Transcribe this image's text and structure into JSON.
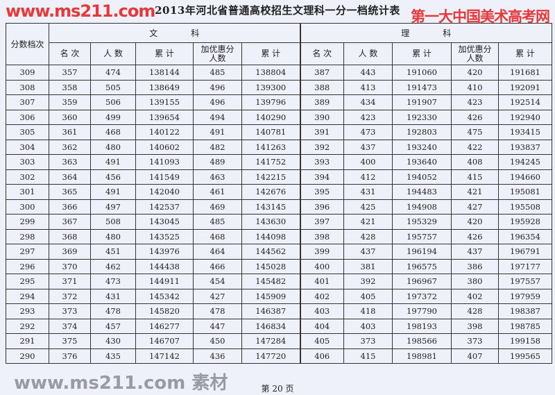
{
  "title": "2013年河北省普通高校招生文理科一分一档统计表",
  "watermarks": {
    "red_line1": "第一大中国美术高考网",
    "red_line2": "www.ms211.com",
    "gray": "www.ms211.com 素材"
  },
  "header": {
    "score_col": "分数档次",
    "wenke": "文　　　　科",
    "like": "理　　　　科",
    "subcols": [
      "名 次",
      "人 数",
      "累 计",
      "加优惠分人数",
      "累 计"
    ]
  },
  "rows": [
    [
      "309",
      "357",
      "474",
      "138144",
      "485",
      "138804",
      "387",
      "443",
      "191060",
      "420",
      "191681"
    ],
    [
      "308",
      "358",
      "505",
      "138649",
      "496",
      "139300",
      "388",
      "413",
      "191473",
      "410",
      "192091"
    ],
    [
      "307",
      "359",
      "506",
      "139155",
      "496",
      "139796",
      "389",
      "434",
      "191907",
      "423",
      "192514"
    ],
    [
      "306",
      "360",
      "499",
      "139654",
      "494",
      "140290",
      "390",
      "423",
      "192330",
      "426",
      "192940"
    ],
    [
      "305",
      "361",
      "468",
      "140122",
      "491",
      "140781",
      "391",
      "473",
      "192803",
      "475",
      "193415"
    ],
    [
      "304",
      "362",
      "480",
      "140602",
      "482",
      "141263",
      "392",
      "437",
      "193240",
      "422",
      "193837"
    ],
    [
      "303",
      "363",
      "491",
      "141093",
      "489",
      "141752",
      "393",
      "400",
      "193640",
      "408",
      "194245"
    ],
    [
      "302",
      "364",
      "456",
      "141549",
      "463",
      "142215",
      "394",
      "412",
      "194052",
      "415",
      "194660"
    ],
    [
      "301",
      "365",
      "491",
      "142040",
      "461",
      "142676",
      "395",
      "431",
      "194483",
      "421",
      "195081"
    ],
    [
      "300",
      "366",
      "497",
      "142537",
      "469",
      "143145",
      "396",
      "425",
      "194908",
      "427",
      "195508"
    ],
    [
      "299",
      "367",
      "508",
      "143045",
      "485",
      "143630",
      "397",
      "421",
      "195329",
      "420",
      "195928"
    ],
    [
      "298",
      "368",
      "480",
      "143525",
      "468",
      "144098",
      "398",
      "428",
      "195757",
      "426",
      "196354"
    ],
    [
      "297",
      "369",
      "451",
      "143976",
      "464",
      "144562",
      "399",
      "437",
      "196194",
      "437",
      "196791"
    ],
    [
      "296",
      "370",
      "462",
      "144438",
      "466",
      "145028",
      "400",
      "381",
      "196575",
      "386",
      "197177"
    ],
    [
      "295",
      "371",
      "473",
      "144911",
      "454",
      "145482",
      "401",
      "392",
      "196967",
      "380",
      "197557"
    ],
    [
      "294",
      "372",
      "431",
      "145342",
      "427",
      "145909",
      "402",
      "405",
      "197372",
      "402",
      "197959"
    ],
    [
      "293",
      "373",
      "478",
      "145820",
      "478",
      "146387",
      "403",
      "418",
      "197790",
      "428",
      "198387"
    ],
    [
      "292",
      "374",
      "457",
      "146277",
      "447",
      "146834",
      "404",
      "403",
      "198193",
      "398",
      "198785"
    ],
    [
      "291",
      "375",
      "430",
      "146707",
      "450",
      "147284",
      "405",
      "373",
      "198566",
      "373",
      "199158"
    ],
    [
      "290",
      "376",
      "435",
      "147142",
      "436",
      "147720",
      "406",
      "415",
      "198981",
      "407",
      "199565"
    ]
  ],
  "footer": "第 20 页"
}
